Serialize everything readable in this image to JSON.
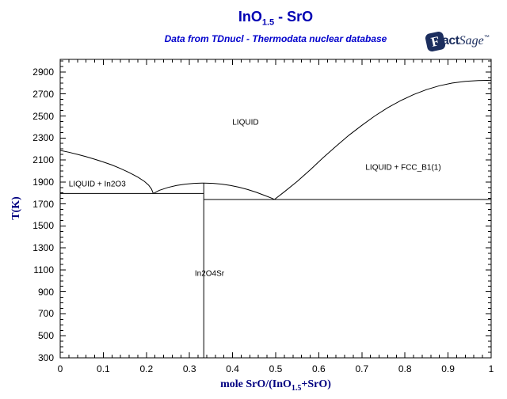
{
  "header": {
    "title_prefix": "InO",
    "title_subscript": "1.5",
    "title_suffix": " - SrO",
    "subtitle": "Data from TDnucl - Thermodata nuclear database"
  },
  "logo": {
    "f": "F",
    "act": "act",
    "sage": "Sage",
    "tm": "™"
  },
  "colors": {
    "title": "#0000b3",
    "subtitle": "#0000cc",
    "axis_label": "#000080",
    "curve": "#000000",
    "logo": "#1c2e5e"
  },
  "chart_data": {
    "type": "line",
    "title": "InO1.5 - SrO",
    "subtitle": "Data from TDnucl - Thermodata nuclear database",
    "xlabel_prefix": "mole SrO/(InO",
    "xlabel_subscript": "1.5",
    "xlabel_suffix": "+SrO)",
    "ylabel": "T(K)",
    "xlim": [
      0,
      1
    ],
    "ylim": [
      300,
      3015
    ],
    "grid": false,
    "x_ticks": [
      0,
      0.1,
      0.2,
      0.3,
      0.4,
      0.5,
      0.6,
      0.7,
      0.8,
      0.9,
      1
    ],
    "x_tick_labels": [
      "0",
      "0.1",
      "0.2",
      "0.3",
      "0.4",
      "0.5",
      "0.6",
      "0.7",
      "0.8",
      "0.9",
      "1"
    ],
    "x_minor_step": 0.02,
    "y_ticks": [
      300,
      500,
      700,
      900,
      1100,
      1300,
      1500,
      1700,
      1900,
      2100,
      2300,
      2500,
      2700,
      2900
    ],
    "y_minor_step": 50,
    "series": [
      {
        "name": "in2o3-liquidus",
        "points": [
          [
            0,
            2187
          ],
          [
            0.02,
            2170
          ],
          [
            0.04,
            2151
          ],
          [
            0.06,
            2130
          ],
          [
            0.08,
            2107
          ],
          [
            0.1,
            2082
          ],
          [
            0.12,
            2054
          ],
          [
            0.14,
            2022
          ],
          [
            0.16,
            1986
          ],
          [
            0.18,
            1944
          ],
          [
            0.195,
            1906
          ],
          [
            0.205,
            1872
          ],
          [
            0.212,
            1835
          ],
          [
            0.216,
            1795
          ]
        ]
      },
      {
        "name": "in2o4sr-liquidus-dome",
        "points": [
          [
            0.216,
            1795
          ],
          [
            0.23,
            1824
          ],
          [
            0.25,
            1850
          ],
          [
            0.27,
            1868
          ],
          [
            0.29,
            1880
          ],
          [
            0.31,
            1887
          ],
          [
            0.333,
            1890
          ],
          [
            0.355,
            1887
          ],
          [
            0.375,
            1880
          ],
          [
            0.395,
            1868
          ],
          [
            0.415,
            1852
          ],
          [
            0.435,
            1831
          ],
          [
            0.455,
            1806
          ],
          [
            0.475,
            1776
          ],
          [
            0.49,
            1753
          ],
          [
            0.497,
            1740
          ]
        ]
      },
      {
        "name": "fcc-b1-liquidus",
        "points": [
          [
            0.497,
            1740
          ],
          [
            0.52,
            1810
          ],
          [
            0.55,
            1905
          ],
          [
            0.58,
            2010
          ],
          [
            0.61,
            2120
          ],
          [
            0.64,
            2225
          ],
          [
            0.67,
            2325
          ],
          [
            0.7,
            2415
          ],
          [
            0.73,
            2500
          ],
          [
            0.76,
            2575
          ],
          [
            0.79,
            2640
          ],
          [
            0.82,
            2695
          ],
          [
            0.85,
            2740
          ],
          [
            0.88,
            2775
          ],
          [
            0.91,
            2800
          ],
          [
            0.94,
            2815
          ],
          [
            0.97,
            2822
          ],
          [
            1.0,
            2825
          ]
        ]
      },
      {
        "name": "eutectic-isotherm-1795K",
        "points": [
          [
            0,
            1795
          ],
          [
            0.333,
            1795
          ]
        ]
      },
      {
        "name": "eutectic-isotherm-1740K",
        "points": [
          [
            0.333,
            1740
          ],
          [
            1,
            1740
          ]
        ]
      },
      {
        "name": "in2o4sr-compound-line",
        "points": [
          [
            0.333,
            300
          ],
          [
            0.333,
            1890
          ]
        ]
      }
    ],
    "region_labels": [
      {
        "text": "LIQUID",
        "x": 0.43,
        "T": 2440
      },
      {
        "text": "LIQUID + In2O3",
        "x": 0.086,
        "T": 1877
      },
      {
        "text": "LIQUID + FCC_B1(1)",
        "x": 0.796,
        "T": 2025
      },
      {
        "text": "In2O4Sr",
        "x": 0.3465,
        "T": 1060
      }
    ]
  }
}
